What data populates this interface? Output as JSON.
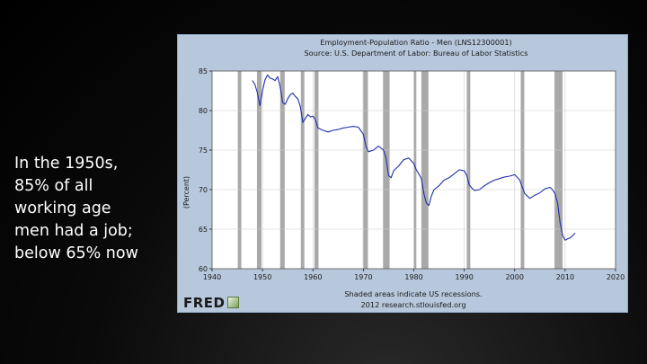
{
  "slide_text": {
    "lines": [
      "In the 1950s,",
      "85% of all",
      "working age",
      "men had a job;",
      "below 65% now"
    ]
  },
  "branding": {
    "logo_text": "FRED"
  },
  "colors": {
    "panel_bg": "#b7c8dc",
    "plot_bg": "#ffffff",
    "recession": "#a9a9a9",
    "line": "#1f2fa8",
    "text": "#1a1a1a"
  },
  "chart_data": {
    "type": "line",
    "title": "Employment-Population Ratio - Men (LNS12300001)",
    "subtitle": "Source: U.S. Department of Labor: Bureau of Labor Statistics",
    "ylabel": "(Percent)",
    "xlabel": "",
    "xlim": [
      1940,
      2020
    ],
    "ylim": [
      60,
      85
    ],
    "xticks": [
      1940,
      1950,
      1960,
      1970,
      1980,
      1990,
      2000,
      2010,
      2020
    ],
    "yticks": [
      60,
      65,
      70,
      75,
      80,
      85
    ],
    "grid": true,
    "footnote_line1": "Shaded areas indicate US recessions.",
    "footnote_line2": "2012 research.stlouisfed.org",
    "recessions": [
      [
        1945.1,
        1945.8
      ],
      [
        1948.9,
        1949.8
      ],
      [
        1953.5,
        1954.4
      ],
      [
        1957.6,
        1958.3
      ],
      [
        1960.3,
        1961.1
      ],
      [
        1969.9,
        1970.9
      ],
      [
        1973.9,
        1975.2
      ],
      [
        1980.0,
        1980.5
      ],
      [
        1981.5,
        1982.9
      ],
      [
        1990.5,
        1991.2
      ],
      [
        2001.2,
        2001.9
      ],
      [
        2007.9,
        2009.5
      ]
    ],
    "series": [
      {
        "x": [
          1948.0,
          1948.5,
          1949.0,
          1949.5,
          1950.0,
          1950.5,
          1951.0,
          1951.5,
          1952.0,
          1952.5,
          1953.0,
          1953.5,
          1954.0,
          1954.5,
          1955.0,
          1955.5,
          1956.0,
          1956.5,
          1957.0,
          1957.5,
          1958.0,
          1958.5,
          1959.0,
          1959.5,
          1960.0,
          1960.5,
          1961.0,
          1962.0,
          1963.0,
          1964.0,
          1965.0,
          1966.0,
          1967.0,
          1968.0,
          1969.0,
          1970.0,
          1970.5,
          1971.0,
          1972.0,
          1973.0,
          1974.0,
          1974.5,
          1975.0,
          1975.5,
          1976.0,
          1977.0,
          1978.0,
          1979.0,
          1980.0,
          1980.5,
          1981.0,
          1981.5,
          1982.0,
          1982.5,
          1983.0,
          1983.5,
          1984.0,
          1985.0,
          1986.0,
          1987.0,
          1988.0,
          1989.0,
          1990.0,
          1990.5,
          1991.0,
          1991.5,
          1992.0,
          1993.0,
          1994.0,
          1995.0,
          1996.0,
          1997.0,
          1998.0,
          1999.0,
          2000.0,
          2001.0,
          2001.5,
          2002.0,
          2003.0,
          2004.0,
          2005.0,
          2006.0,
          2007.0,
          2007.5,
          2008.0,
          2008.5,
          2009.0,
          2009.5,
          2010.0,
          2010.5,
          2011.0,
          2011.5,
          2012.0
        ],
        "values": [
          83.8,
          83.3,
          82.2,
          80.6,
          82.5,
          83.9,
          84.5,
          84.1,
          84.0,
          83.8,
          84.3,
          83.0,
          81.0,
          80.8,
          81.5,
          82.0,
          82.2,
          81.8,
          81.5,
          80.5,
          78.5,
          79.0,
          79.5,
          79.2,
          79.3,
          78.8,
          77.8,
          77.5,
          77.3,
          77.5,
          77.6,
          77.8,
          77.9,
          78.0,
          77.9,
          77.0,
          75.5,
          74.8,
          75.0,
          75.5,
          75.0,
          74.0,
          71.8,
          71.5,
          72.4,
          73.0,
          73.8,
          74.0,
          73.3,
          72.5,
          72.0,
          71.4,
          69.5,
          68.3,
          68.0,
          69.2,
          70.0,
          70.5,
          71.2,
          71.5,
          72.0,
          72.5,
          72.4,
          71.8,
          70.6,
          70.2,
          69.9,
          70.0,
          70.5,
          70.9,
          71.2,
          71.4,
          71.6,
          71.7,
          71.9,
          71.2,
          70.3,
          69.5,
          68.9,
          69.3,
          69.6,
          70.1,
          70.3,
          70.0,
          69.5,
          68.3,
          65.8,
          64.2,
          63.6,
          63.8,
          63.9,
          64.2,
          64.5
        ]
      }
    ]
  }
}
